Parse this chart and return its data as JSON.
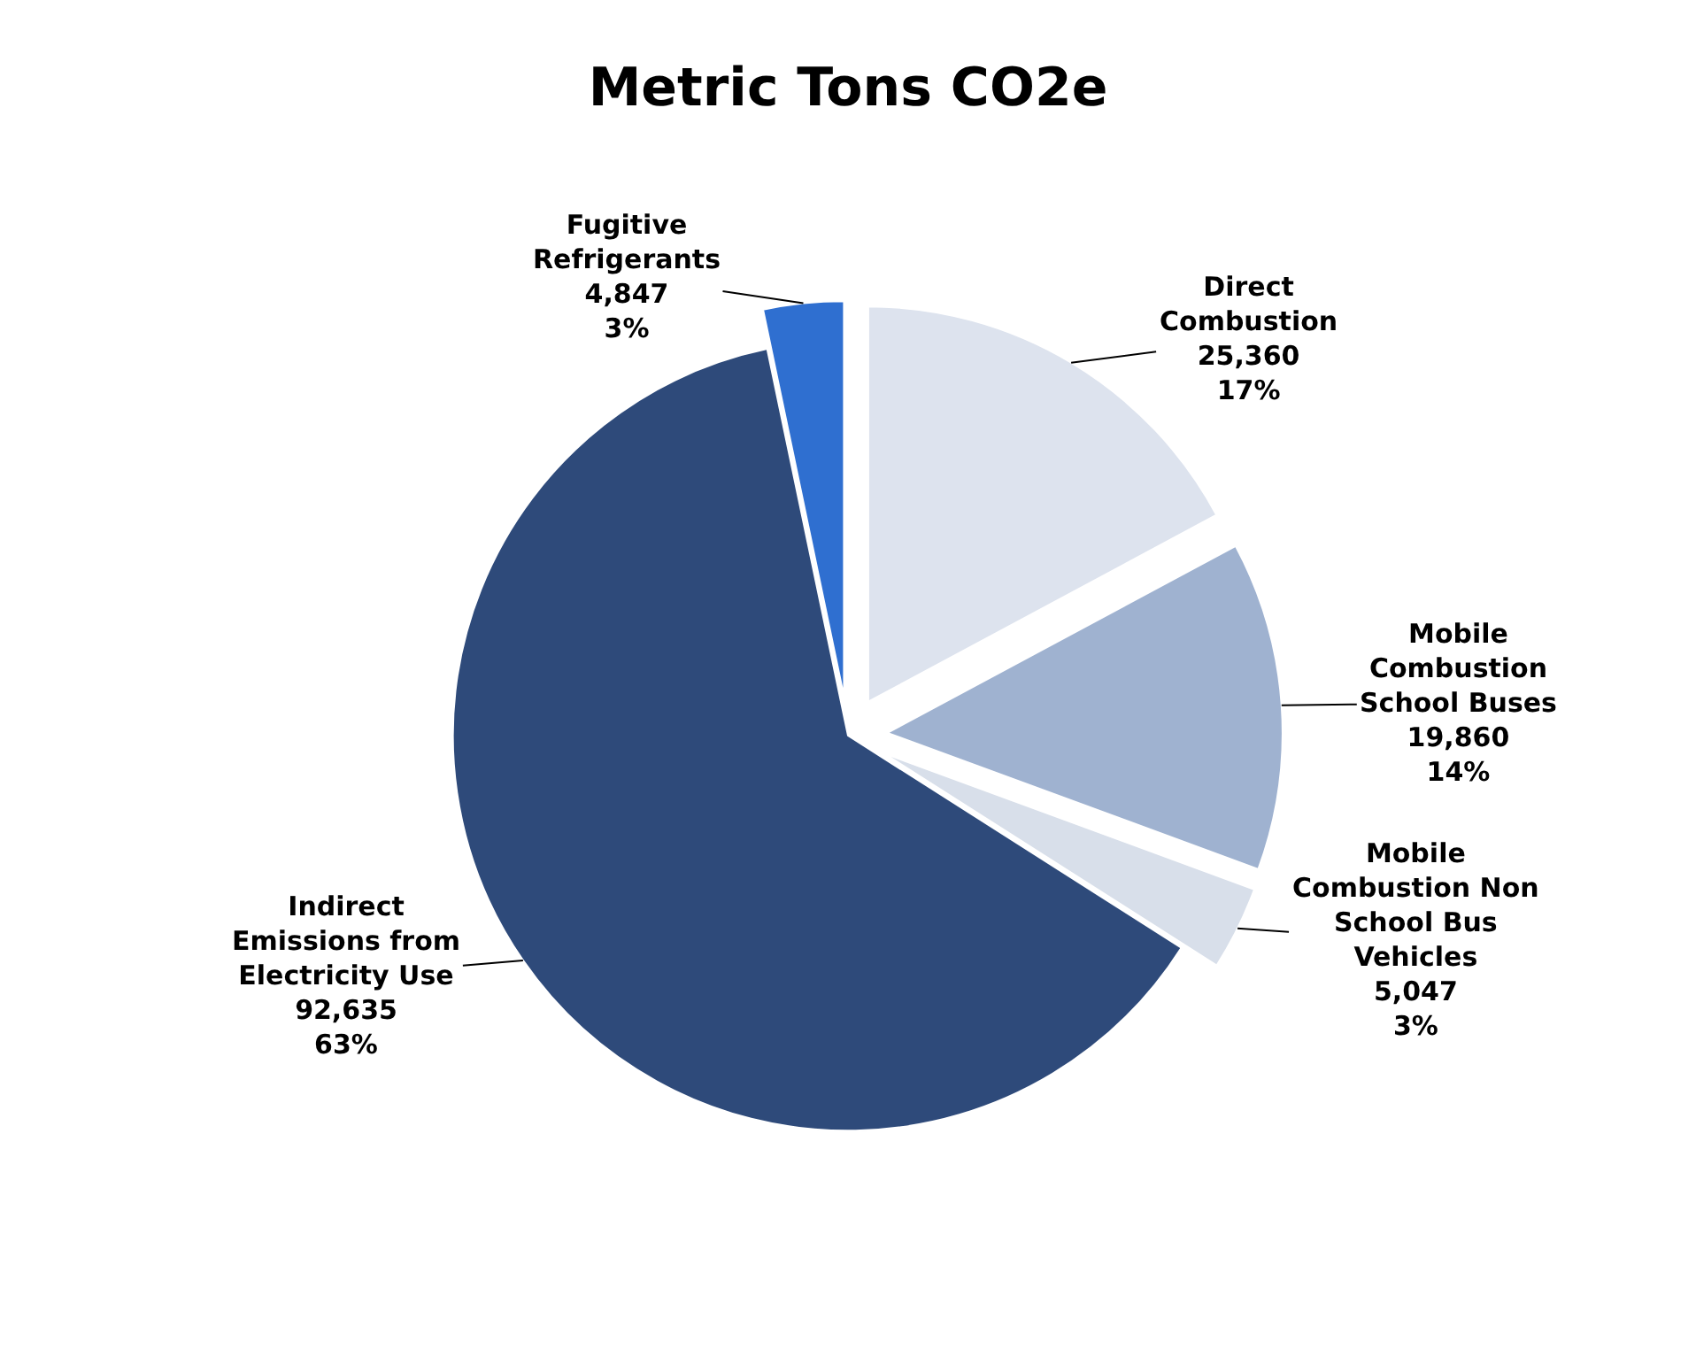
{
  "chart_data": {
    "type": "pie",
    "title": "Metric Tons CO2e",
    "categories": [
      "Direct Combustion",
      "Mobile Combustion School Buses",
      "Mobile Combustion Non School Bus Vehicles",
      "Indirect Emissions from Electricity Use",
      "Fugitive Refrigerants"
    ],
    "values": [
      25360,
      19860,
      5047,
      92635,
      4847
    ],
    "value_labels": [
      "25,360\n17%",
      "19,860\n14%",
      "5,047\n3%",
      "92,635\n63%",
      "4,847\n3%"
    ],
    "colors": [
      "#dde3ee",
      "#9fb2d0",
      "#d8dfea",
      "#2e4a7a",
      "#2f6fd0"
    ],
    "legend": false
  }
}
